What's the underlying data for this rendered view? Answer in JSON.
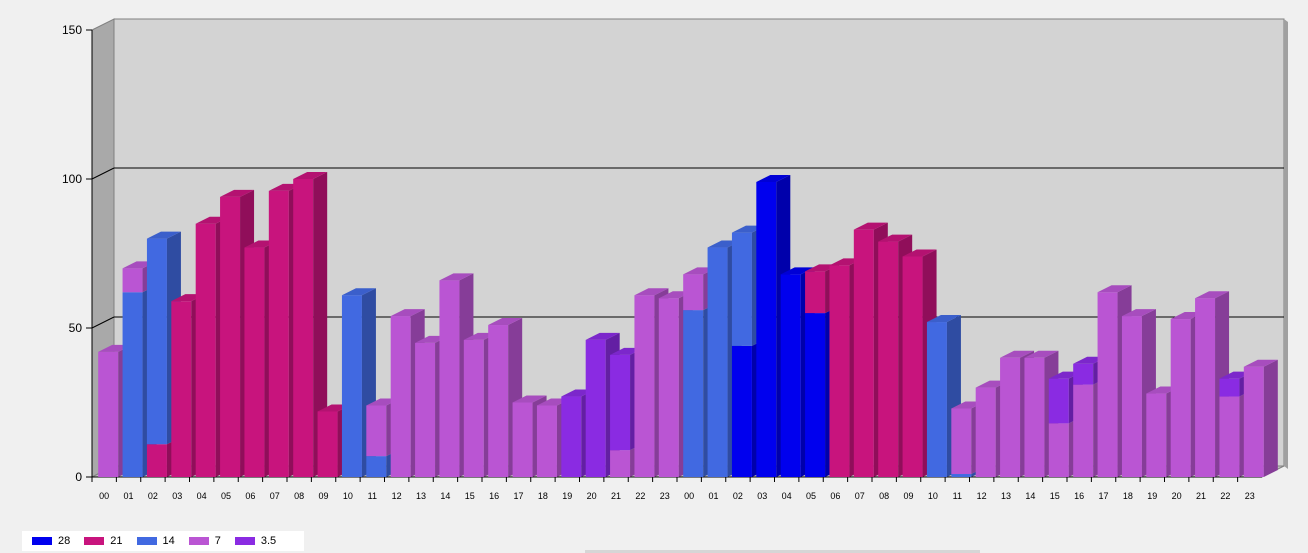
{
  "chart_data": {
    "type": "bar",
    "stacked": true,
    "three_d": true,
    "ylim": [
      0,
      150
    ],
    "y_ticks": [
      "0",
      "50",
      "100",
      "150"
    ],
    "grid": true,
    "legend_position": "bottom-left",
    "categories": [
      "00",
      "01",
      "02",
      "03",
      "04",
      "05",
      "06",
      "07",
      "08",
      "09",
      "10",
      "11",
      "12",
      "13",
      "14",
      "15",
      "16",
      "17",
      "18",
      "19",
      "20",
      "21",
      "22",
      "23",
      "00",
      "01",
      "02",
      "03",
      "04",
      "05",
      "06",
      "07",
      "08",
      "09",
      "10",
      "11",
      "12",
      "13",
      "14",
      "15",
      "16",
      "17",
      "18",
      "19",
      "20",
      "21",
      "22",
      "23"
    ],
    "series": [
      {
        "name": "28",
        "color": "#0000ee",
        "values": [
          0,
          0,
          0,
          0,
          0,
          0,
          0,
          0,
          0,
          0,
          0,
          0,
          0,
          0,
          0,
          0,
          0,
          0,
          0,
          0,
          0,
          0,
          0,
          0,
          0,
          0,
          44,
          99,
          68,
          55,
          0,
          0,
          0,
          0,
          0,
          0,
          0,
          0,
          0,
          0,
          0,
          0,
          0,
          0,
          0,
          0,
          0,
          0
        ]
      },
      {
        "name": "21",
        "color": "#c8147d",
        "values": [
          0,
          0,
          11,
          59,
          85,
          94,
          77,
          96,
          100,
          22,
          0,
          0,
          0,
          0,
          0,
          0,
          0,
          0,
          0,
          0,
          0,
          0,
          0,
          0,
          0,
          0,
          0,
          0,
          0,
          14,
          71,
          83,
          79,
          74,
          0,
          0,
          0,
          0,
          0,
          0,
          0,
          0,
          0,
          0,
          0,
          0,
          0,
          0
        ]
      },
      {
        "name": "14",
        "color": "#4169e1",
        "values": [
          0,
          62,
          69,
          0,
          0,
          0,
          0,
          0,
          0,
          0,
          61,
          7,
          0,
          0,
          0,
          0,
          0,
          0,
          0,
          0,
          0,
          0,
          0,
          0,
          56,
          77,
          38,
          0,
          0,
          0,
          0,
          0,
          0,
          0,
          52,
          1,
          0,
          0,
          0,
          0,
          0,
          0,
          0,
          0,
          0,
          0,
          0,
          0
        ]
      },
      {
        "name": "7",
        "color": "#ba55d3",
        "values": [
          42,
          8,
          0,
          0,
          0,
          0,
          0,
          0,
          0,
          0,
          0,
          17,
          54,
          45,
          66,
          46,
          51,
          25,
          24,
          0,
          0,
          9,
          61,
          60,
          12,
          0,
          0,
          0,
          0,
          0,
          0,
          0,
          0,
          0,
          0,
          22,
          30,
          40,
          40,
          18,
          31,
          62,
          54,
          28,
          53,
          60,
          27,
          37
        ]
      },
      {
        "name": "3.5",
        "color": "#8a2be2",
        "values": [
          0,
          0,
          0,
          0,
          0,
          0,
          0,
          0,
          0,
          0,
          0,
          0,
          0,
          0,
          0,
          0,
          0,
          0,
          0,
          27,
          46,
          32,
          0,
          0,
          0,
          0,
          0,
          0,
          0,
          0,
          0,
          0,
          0,
          0,
          0,
          0,
          0,
          0,
          0,
          15,
          7,
          0,
          0,
          0,
          0,
          0,
          6,
          0
        ]
      }
    ]
  }
}
